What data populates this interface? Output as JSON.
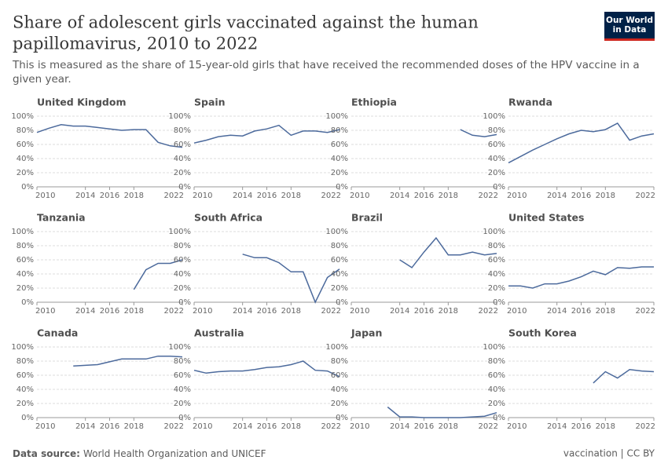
{
  "header": {
    "title": "Share of adolescent girls vaccinated against the human papillomavirus, 2010 to 2022",
    "subtitle": "This is measured as the share of 15-year-old girls that have received the recommended doses of the HPV vaccine in a given year.",
    "logo": "Our World in Data"
  },
  "footer": {
    "source_label": "Data source:",
    "source": "World Health Organization and UNICEF",
    "right": "vaccination | CC BY"
  },
  "chart_data": [
    {
      "type": "line",
      "title": "United Kingdom",
      "x": [
        2010,
        2011,
        2012,
        2013,
        2014,
        2015,
        2016,
        2017,
        2018,
        2019,
        2020,
        2021,
        2022
      ],
      "values": [
        77,
        83,
        88,
        86,
        86,
        84,
        82,
        80,
        81,
        81,
        63,
        58,
        56
      ],
      "color": "#4c6a9c",
      "xlim": [
        2010,
        2022
      ],
      "xticks": [
        2010,
        2014,
        2016,
        2018,
        2022
      ],
      "ylim": [
        0,
        100
      ],
      "yticks": [
        {
          "value": 0,
          "label": "0%"
        },
        {
          "value": 20,
          "label": "20%"
        },
        {
          "value": 40,
          "label": "40%"
        },
        {
          "value": 60,
          "label": "60%"
        },
        {
          "value": 80,
          "label": "80%"
        },
        {
          "value": 100,
          "label": "100%"
        }
      ]
    },
    {
      "type": "line",
      "title": "Spain",
      "x": [
        2010,
        2011,
        2012,
        2013,
        2014,
        2015,
        2016,
        2017,
        2018,
        2019,
        2020,
        2021,
        2022
      ],
      "values": [
        62,
        66,
        71,
        73,
        72,
        79,
        82,
        87,
        73,
        79,
        79,
        77,
        81
      ],
      "color": "#4c6a9c",
      "xlim": [
        2010,
        2022
      ],
      "xticks": [
        2010,
        2014,
        2016,
        2018,
        2022
      ],
      "ylim": [
        0,
        100
      ],
      "yticks": [
        {
          "value": 0,
          "label": "0%"
        },
        {
          "value": 20,
          "label": "20%"
        },
        {
          "value": 40,
          "label": "40%"
        },
        {
          "value": 60,
          "label": "60%"
        },
        {
          "value": 80,
          "label": "80%"
        },
        {
          "value": 100,
          "label": "100%"
        }
      ]
    },
    {
      "type": "line",
      "title": "Ethiopia",
      "x": [
        2010,
        2011,
        2012,
        2013,
        2014,
        2015,
        2016,
        2017,
        2018,
        2019,
        2020,
        2021,
        2022
      ],
      "values": [
        null,
        null,
        null,
        null,
        null,
        null,
        null,
        null,
        null,
        81,
        73,
        71,
        74
      ],
      "color": "#4c6a9c",
      "xlim": [
        2010,
        2022
      ],
      "xticks": [
        2010,
        2014,
        2016,
        2018,
        2022
      ],
      "ylim": [
        0,
        100
      ],
      "yticks": [
        {
          "value": 0,
          "label": "0%"
        },
        {
          "value": 20,
          "label": "20%"
        },
        {
          "value": 40,
          "label": "40%"
        },
        {
          "value": 60,
          "label": "60%"
        },
        {
          "value": 80,
          "label": "80%"
        },
        {
          "value": 100,
          "label": "100%"
        }
      ]
    },
    {
      "type": "line",
      "title": "Rwanda",
      "x": [
        2010,
        2011,
        2012,
        2013,
        2014,
        2015,
        2016,
        2017,
        2018,
        2019,
        2020,
        2021,
        2022
      ],
      "values": [
        34,
        43,
        52,
        60,
        68,
        75,
        80,
        78,
        81,
        90,
        66,
        72,
        75
      ],
      "color": "#4c6a9c",
      "xlim": [
        2010,
        2022
      ],
      "xticks": [
        2010,
        2014,
        2016,
        2018,
        2022
      ],
      "ylim": [
        0,
        100
      ],
      "yticks": [
        {
          "value": 0,
          "label": "0%"
        },
        {
          "value": 20,
          "label": "20%"
        },
        {
          "value": 40,
          "label": "40%"
        },
        {
          "value": 60,
          "label": "60%"
        },
        {
          "value": 80,
          "label": "80%"
        },
        {
          "value": 100,
          "label": "100%"
        }
      ]
    },
    {
      "type": "line",
      "title": "Tanzania",
      "x": [
        2010,
        2011,
        2012,
        2013,
        2014,
        2015,
        2016,
        2017,
        2018,
        2019,
        2020,
        2021,
        2022
      ],
      "values": [
        null,
        null,
        null,
        null,
        null,
        null,
        null,
        null,
        18,
        46,
        55,
        55,
        60
      ],
      "color": "#4c6a9c",
      "xlim": [
        2010,
        2022
      ],
      "xticks": [
        2010,
        2014,
        2016,
        2018,
        2022
      ],
      "ylim": [
        0,
        100
      ],
      "yticks": [
        {
          "value": 0,
          "label": "0%"
        },
        {
          "value": 20,
          "label": "20%"
        },
        {
          "value": 40,
          "label": "40%"
        },
        {
          "value": 60,
          "label": "60%"
        },
        {
          "value": 80,
          "label": "80%"
        },
        {
          "value": 100,
          "label": "100%"
        }
      ]
    },
    {
      "type": "line",
      "title": "South Africa",
      "x": [
        2010,
        2011,
        2012,
        2013,
        2014,
        2015,
        2016,
        2017,
        2018,
        2019,
        2020,
        2021,
        2022
      ],
      "values": [
        null,
        null,
        null,
        null,
        68,
        63,
        63,
        56,
        43,
        43,
        0,
        35,
        47
      ],
      "color": "#4c6a9c",
      "xlim": [
        2010,
        2022
      ],
      "xticks": [
        2010,
        2014,
        2016,
        2018,
        2022
      ],
      "ylim": [
        0,
        100
      ],
      "yticks": [
        {
          "value": 0,
          "label": "0%"
        },
        {
          "value": 20,
          "label": "20%"
        },
        {
          "value": 40,
          "label": "40%"
        },
        {
          "value": 60,
          "label": "60%"
        },
        {
          "value": 80,
          "label": "80%"
        },
        {
          "value": 100,
          "label": "100%"
        }
      ]
    },
    {
      "type": "line",
      "title": "Brazil",
      "x": [
        2010,
        2011,
        2012,
        2013,
        2014,
        2015,
        2016,
        2017,
        2018,
        2019,
        2020,
        2021,
        2022
      ],
      "values": [
        null,
        null,
        null,
        null,
        60,
        49,
        71,
        91,
        67,
        67,
        71,
        67,
        69
      ],
      "color": "#4c6a9c",
      "xlim": [
        2010,
        2022
      ],
      "xticks": [
        2010,
        2014,
        2016,
        2018,
        2022
      ],
      "ylim": [
        0,
        100
      ],
      "yticks": [
        {
          "value": 0,
          "label": "0%"
        },
        {
          "value": 20,
          "label": "20%"
        },
        {
          "value": 40,
          "label": "40%"
        },
        {
          "value": 60,
          "label": "60%"
        },
        {
          "value": 80,
          "label": "80%"
        },
        {
          "value": 100,
          "label": "100%"
        }
      ]
    },
    {
      "type": "line",
      "title": "United States",
      "x": [
        2010,
        2011,
        2012,
        2013,
        2014,
        2015,
        2016,
        2017,
        2018,
        2019,
        2020,
        2021,
        2022
      ],
      "values": [
        23,
        23,
        20,
        26,
        26,
        30,
        36,
        44,
        39,
        49,
        48,
        50,
        50
      ],
      "color": "#4c6a9c",
      "xlim": [
        2010,
        2022
      ],
      "xticks": [
        2010,
        2014,
        2016,
        2018,
        2022
      ],
      "ylim": [
        0,
        100
      ],
      "yticks": [
        {
          "value": 0,
          "label": "0%"
        },
        {
          "value": 20,
          "label": "20%"
        },
        {
          "value": 40,
          "label": "40%"
        },
        {
          "value": 60,
          "label": "60%"
        },
        {
          "value": 80,
          "label": "80%"
        },
        {
          "value": 100,
          "label": "100%"
        }
      ]
    },
    {
      "type": "line",
      "title": "Canada",
      "x": [
        2010,
        2011,
        2012,
        2013,
        2014,
        2015,
        2016,
        2017,
        2018,
        2019,
        2020,
        2021,
        2022
      ],
      "values": [
        null,
        null,
        null,
        73,
        74,
        75,
        79,
        83,
        83,
        83,
        87,
        87,
        86
      ],
      "color": "#4c6a9c",
      "xlim": [
        2010,
        2022
      ],
      "xticks": [
        2010,
        2014,
        2016,
        2018,
        2022
      ],
      "ylim": [
        0,
        100
      ],
      "yticks": [
        {
          "value": 0,
          "label": "0%"
        },
        {
          "value": 20,
          "label": "20%"
        },
        {
          "value": 40,
          "label": "40%"
        },
        {
          "value": 60,
          "label": "60%"
        },
        {
          "value": 80,
          "label": "80%"
        },
        {
          "value": 100,
          "label": "100%"
        }
      ]
    },
    {
      "type": "line",
      "title": "Australia",
      "x": [
        2010,
        2011,
        2012,
        2013,
        2014,
        2015,
        2016,
        2017,
        2018,
        2019,
        2020,
        2021,
        2022
      ],
      "values": [
        67,
        63,
        65,
        66,
        66,
        68,
        71,
        72,
        75,
        80,
        67,
        66,
        58
      ],
      "color": "#4c6a9c",
      "xlim": [
        2010,
        2022
      ],
      "xticks": [
        2010,
        2014,
        2016,
        2018,
        2022
      ],
      "ylim": [
        0,
        100
      ],
      "yticks": [
        {
          "value": 0,
          "label": "0%"
        },
        {
          "value": 20,
          "label": "20%"
        },
        {
          "value": 40,
          "label": "40%"
        },
        {
          "value": 60,
          "label": "60%"
        },
        {
          "value": 80,
          "label": "80%"
        },
        {
          "value": 100,
          "label": "100%"
        }
      ]
    },
    {
      "type": "line",
      "title": "Japan",
      "x": [
        2010,
        2011,
        2012,
        2013,
        2014,
        2015,
        2016,
        2017,
        2018,
        2019,
        2020,
        2021,
        2022
      ],
      "values": [
        null,
        null,
        null,
        15,
        1,
        1,
        0,
        0,
        0,
        0,
        1,
        2,
        7
      ],
      "color": "#4c6a9c",
      "xlim": [
        2010,
        2022
      ],
      "xticks": [
        2010,
        2014,
        2016,
        2018,
        2022
      ],
      "ylim": [
        0,
        100
      ],
      "yticks": [
        {
          "value": 0,
          "label": "0%"
        },
        {
          "value": 20,
          "label": "20%"
        },
        {
          "value": 40,
          "label": "40%"
        },
        {
          "value": 60,
          "label": "60%"
        },
        {
          "value": 80,
          "label": "80%"
        },
        {
          "value": 100,
          "label": "100%"
        }
      ]
    },
    {
      "type": "line",
      "title": "South Korea",
      "x": [
        2010,
        2011,
        2012,
        2013,
        2014,
        2015,
        2016,
        2017,
        2018,
        2019,
        2020,
        2021,
        2022
      ],
      "values": [
        null,
        null,
        null,
        null,
        null,
        null,
        null,
        49,
        65,
        56,
        68,
        66,
        65
      ],
      "color": "#4c6a9c",
      "xlim": [
        2010,
        2022
      ],
      "xticks": [
        2010,
        2014,
        2016,
        2018,
        2022
      ],
      "ylim": [
        0,
        100
      ],
      "yticks": [
        {
          "value": 0,
          "label": "0%"
        },
        {
          "value": 20,
          "label": "20%"
        },
        {
          "value": 40,
          "label": "40%"
        },
        {
          "value": 60,
          "label": "60%"
        },
        {
          "value": 80,
          "label": "80%"
        },
        {
          "value": 100,
          "label": "100%"
        }
      ]
    }
  ]
}
